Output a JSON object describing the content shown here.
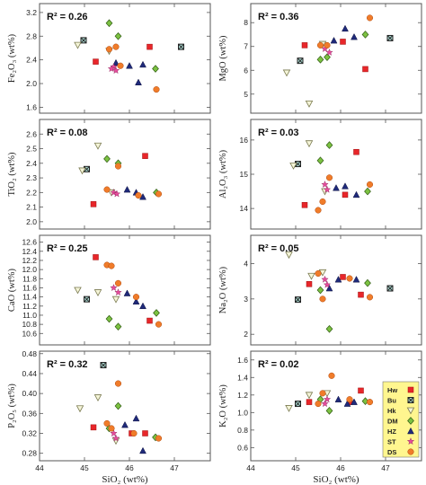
{
  "figure": {
    "x_label": "SiO₂ (wt%)",
    "x_ticks": [
      "44",
      "45",
      "46",
      "47"
    ],
    "x_lim": [
      44,
      47.8
    ]
  },
  "legend": [
    {
      "key": "Hw",
      "label": "Hw",
      "marker": "square",
      "color": "#e8262a"
    },
    {
      "key": "Bu",
      "label": "Bu",
      "marker": "square-x",
      "color": "#5a7f8a"
    },
    {
      "key": "Hk",
      "label": "Hk",
      "marker": "triangle-down",
      "color": "#d9d9a8"
    },
    {
      "key": "DM",
      "label": "DM",
      "marker": "diamond",
      "color": "#7cc242"
    },
    {
      "key": "HZ",
      "label": "HZ",
      "marker": "triangle-up",
      "color": "#1f2a7a"
    },
    {
      "key": "ST",
      "label": "ST",
      "marker": "star",
      "color": "#e64c9c"
    },
    {
      "key": "DS",
      "label": "DS",
      "marker": "circle",
      "color": "#f07c2a"
    }
  ],
  "colors": {
    "legend_bg": "#fff68f",
    "frame": "#555555"
  },
  "chart_data": [
    {
      "type": "scatter",
      "id": "fe2o3",
      "ylabel": "Fe₂O₃ (wt%)",
      "r2": "R² = 0.26",
      "ylim": [
        1.5,
        3.35
      ],
      "yticks": [
        1.6,
        2.0,
        2.4,
        2.8,
        3.2
      ],
      "ytick_labels": [
        "1.6",
        "2.0",
        "2.4",
        "2.8",
        "3.2"
      ],
      "series": [
        {
          "key": "Hw",
          "points": [
            [
              45.25,
              2.37
            ],
            [
              46.45,
              2.62
            ]
          ]
        },
        {
          "key": "Bu",
          "points": [
            [
              44.98,
              2.73
            ],
            [
              47.15,
              2.62
            ]
          ]
        },
        {
          "key": "Hk",
          "points": [
            [
              44.85,
              2.65
            ],
            [
              45.55,
              2.55
            ]
          ]
        },
        {
          "key": "DM",
          "points": [
            [
              45.55,
              3.02
            ],
            [
              45.75,
              2.8
            ],
            [
              46.58,
              2.25
            ]
          ]
        },
        {
          "key": "HZ",
          "points": [
            [
              45.7,
              2.35
            ],
            [
              46.0,
              2.3
            ],
            [
              46.2,
              2.02
            ],
            [
              46.3,
              2.32
            ]
          ]
        },
        {
          "key": "ST",
          "points": [
            [
              45.65,
              2.28
            ],
            [
              45.7,
              2.22
            ],
            [
              45.6,
              2.25
            ]
          ]
        },
        {
          "key": "DS",
          "points": [
            [
              45.55,
              2.58
            ],
            [
              45.7,
              2.62
            ],
            [
              45.8,
              2.3
            ],
            [
              46.6,
              1.9
            ]
          ]
        }
      ]
    },
    {
      "type": "scatter",
      "id": "mgo",
      "ylabel": "MgO (wt%)",
      "r2": "R² = 0.36",
      "ylim": [
        4.2,
        8.8
      ],
      "yticks": [
        5,
        6,
        7,
        8
      ],
      "ytick_labels": [
        "5",
        "6",
        "7",
        "8"
      ],
      "series": [
        {
          "key": "Hw",
          "points": [
            [
              45.2,
              7.05
            ],
            [
              46.05,
              7.2
            ],
            [
              46.55,
              6.05
            ]
          ]
        },
        {
          "key": "Bu",
          "points": [
            [
              45.1,
              6.4
            ],
            [
              47.1,
              7.35
            ]
          ]
        },
        {
          "key": "Hk",
          "points": [
            [
              44.8,
              5.9
            ],
            [
              45.3,
              4.6
            ],
            [
              45.6,
              7.1
            ]
          ]
        },
        {
          "key": "DM",
          "points": [
            [
              45.55,
              6.45
            ],
            [
              45.7,
              6.55
            ],
            [
              46.55,
              7.5
            ]
          ]
        },
        {
          "key": "HZ",
          "points": [
            [
              45.85,
              7.25
            ],
            [
              46.1,
              7.75
            ],
            [
              46.3,
              7.4
            ]
          ]
        },
        {
          "key": "ST",
          "points": [
            [
              45.65,
              6.9
            ],
            [
              45.75,
              6.75
            ]
          ]
        },
        {
          "key": "DS",
          "points": [
            [
              45.55,
              7.05
            ],
            [
              45.7,
              7.05
            ],
            [
              46.65,
              8.2
            ]
          ]
        }
      ]
    },
    {
      "type": "scatter",
      "id": "tio2",
      "ylabel": "TiO₂ (wt%)",
      "r2": "R² = 0.08",
      "ylim": [
        1.95,
        2.7
      ],
      "yticks": [
        2.0,
        2.1,
        2.2,
        2.3,
        2.4,
        2.5,
        2.6
      ],
      "ytick_labels": [
        "2.0",
        "2.1",
        "2.2",
        "2.3",
        "2.4",
        "2.5",
        "2.6"
      ],
      "series": [
        {
          "key": "Hw",
          "points": [
            [
              45.2,
              2.12
            ],
            [
              46.35,
              2.45
            ]
          ]
        },
        {
          "key": "Bu",
          "points": [
            [
              45.05,
              2.36
            ]
          ]
        },
        {
          "key": "Hk",
          "points": [
            [
              44.95,
              2.35
            ],
            [
              45.3,
              2.52
            ],
            [
              45.6,
              2.2
            ]
          ]
        },
        {
          "key": "DM",
          "points": [
            [
              45.5,
              2.43
            ],
            [
              45.75,
              2.4
            ],
            [
              46.6,
              2.2
            ]
          ]
        },
        {
          "key": "HZ",
          "points": [
            [
              45.95,
              2.22
            ],
            [
              46.15,
              2.2
            ],
            [
              46.3,
              2.17
            ]
          ]
        },
        {
          "key": "ST",
          "points": [
            [
              45.65,
              2.2
            ],
            [
              45.72,
              2.19
            ]
          ]
        },
        {
          "key": "DS",
          "points": [
            [
              45.5,
              2.22
            ],
            [
              45.75,
              2.38
            ],
            [
              46.2,
              2.18
            ],
            [
              46.65,
              2.19
            ]
          ]
        }
      ]
    },
    {
      "type": "scatter",
      "id": "al2o3",
      "ylabel": "Al₂O₃ (wt%)",
      "r2": "R² = 0.03",
      "ylim": [
        13.4,
        16.6
      ],
      "yticks": [
        14,
        15,
        16
      ],
      "ytick_labels": [
        "14",
        "15",
        "16"
      ],
      "series": [
        {
          "key": "Hw",
          "points": [
            [
              45.2,
              14.1
            ],
            [
              46.1,
              14.4
            ],
            [
              46.35,
              15.65
            ]
          ]
        },
        {
          "key": "Bu",
          "points": [
            [
              45.05,
              15.3
            ]
          ]
        },
        {
          "key": "Hk",
          "points": [
            [
              44.95,
              15.25
            ],
            [
              45.3,
              15.9
            ],
            [
              45.65,
              14.5
            ]
          ]
        },
        {
          "key": "DM",
          "points": [
            [
              45.55,
              15.4
            ],
            [
              45.75,
              15.85
            ],
            [
              46.6,
              14.5
            ]
          ]
        },
        {
          "key": "HZ",
          "points": [
            [
              45.9,
              14.6
            ],
            [
              46.1,
              14.65
            ],
            [
              46.35,
              14.4
            ]
          ]
        },
        {
          "key": "ST",
          "points": [
            [
              45.65,
              14.7
            ],
            [
              45.7,
              14.55
            ]
          ]
        },
        {
          "key": "DS",
          "points": [
            [
              45.5,
              13.95
            ],
            [
              45.6,
              14.2
            ],
            [
              45.75,
              14.9
            ],
            [
              46.65,
              14.7
            ]
          ]
        }
      ]
    },
    {
      "type": "scatter",
      "id": "cao",
      "ylabel": "CaO (wt%)",
      "r2": "R² = 0.25",
      "ylim": [
        10.35,
        12.75
      ],
      "yticks": [
        10.6,
        10.8,
        11.0,
        11.2,
        11.4,
        11.6,
        11.8,
        12.0,
        12.2,
        12.4,
        12.6
      ],
      "ytick_labels": [
        "10.6",
        "10.8",
        "11.0",
        "11.2",
        "11.4",
        "11.6",
        "11.8",
        "12.0",
        "12.2",
        "12.4",
        "12.6"
      ],
      "series": [
        {
          "key": "Hw",
          "points": [
            [
              45.25,
              12.27
            ],
            [
              46.45,
              10.88
            ]
          ]
        },
        {
          "key": "Bu",
          "points": [
            [
              45.05,
              11.35
            ]
          ]
        },
        {
          "key": "Hk",
          "points": [
            [
              44.85,
              11.55
            ],
            [
              45.3,
              11.5
            ],
            [
              45.7,
              11.35
            ]
          ]
        },
        {
          "key": "DM",
          "points": [
            [
              45.55,
              10.92
            ],
            [
              45.75,
              10.75
            ],
            [
              46.6,
              11.05
            ]
          ]
        },
        {
          "key": "HZ",
          "points": [
            [
              45.95,
              11.48
            ],
            [
              46.15,
              11.3
            ],
            [
              46.3,
              11.2
            ]
          ]
        },
        {
          "key": "ST",
          "points": [
            [
              45.65,
              11.6
            ],
            [
              45.75,
              11.5
            ]
          ]
        },
        {
          "key": "DS",
          "points": [
            [
              45.5,
              12.1
            ],
            [
              45.6,
              12.08
            ],
            [
              45.75,
              11.7
            ],
            [
              46.15,
              11.4
            ],
            [
              46.65,
              10.8
            ]
          ]
        }
      ]
    },
    {
      "type": "scatter",
      "id": "na2o",
      "ylabel": "Na₂O (wt%)",
      "r2": "R² = 0.05",
      "ylim": [
        1.7,
        4.8
      ],
      "yticks": [
        2,
        3,
        4
      ],
      "ytick_labels": [
        "2",
        "3",
        "4"
      ],
      "series": [
        {
          "key": "Hw",
          "points": [
            [
              45.3,
              3.42
            ],
            [
              46.05,
              3.62
            ],
            [
              46.45,
              3.12
            ]
          ]
        },
        {
          "key": "Bu",
          "points": [
            [
              45.05,
              2.98
            ],
            [
              47.1,
              3.3
            ]
          ]
        },
        {
          "key": "Hk",
          "points": [
            [
              44.85,
              4.25
            ],
            [
              45.35,
              3.65
            ],
            [
              45.6,
              3.75
            ]
          ]
        },
        {
          "key": "DM",
          "points": [
            [
              45.55,
              3.25
            ],
            [
              45.75,
              2.15
            ],
            [
              46.6,
              3.45
            ]
          ]
        },
        {
          "key": "HZ",
          "points": [
            [
              45.75,
              3.3
            ],
            [
              45.95,
              3.55
            ],
            [
              46.35,
              3.55
            ]
          ]
        },
        {
          "key": "ST",
          "points": [
            [
              45.65,
              3.55
            ],
            [
              45.7,
              3.4
            ]
          ]
        },
        {
          "key": "DS",
          "points": [
            [
              45.5,
              3.72
            ],
            [
              45.6,
              3.0
            ],
            [
              46.2,
              3.58
            ],
            [
              46.65,
              3.05
            ]
          ]
        }
      ]
    },
    {
      "type": "scatter",
      "id": "p2o5",
      "ylabel": "P₂O₅ (wt%)",
      "r2": "R² = 0.32",
      "ylim": [
        0.265,
        0.485
      ],
      "yticks": [
        0.28,
        0.32,
        0.36,
        0.4,
        0.44,
        0.48
      ],
      "ytick_labels": [
        "0.28",
        "0.32",
        "0.36",
        "0.40",
        "0.44",
        "0.48"
      ],
      "series": [
        {
          "key": "Hw",
          "points": [
            [
              45.2,
              0.332
            ],
            [
              46.05,
              0.32
            ],
            [
              46.35,
              0.32
            ]
          ]
        },
        {
          "key": "Bu",
          "points": [
            [
              45.42,
              0.457
            ]
          ]
        },
        {
          "key": "Hk",
          "points": [
            [
              44.9,
              0.37
            ],
            [
              45.3,
              0.392
            ],
            [
              45.7,
              0.305
            ]
          ]
        },
        {
          "key": "DM",
          "points": [
            [
              45.55,
              0.33
            ],
            [
              45.75,
              0.375
            ],
            [
              46.58,
              0.312
            ]
          ]
        },
        {
          "key": "HZ",
          "points": [
            [
              45.9,
              0.337
            ],
            [
              46.15,
              0.35
            ],
            [
              46.3,
              0.285
            ]
          ]
        },
        {
          "key": "ST",
          "points": [
            [
              45.65,
              0.32
            ],
            [
              45.7,
              0.31
            ]
          ]
        },
        {
          "key": "DS",
          "points": [
            [
              45.5,
              0.34
            ],
            [
              45.6,
              0.33
            ],
            [
              45.75,
              0.42
            ],
            [
              46.1,
              0.32
            ],
            [
              46.65,
              0.31
            ]
          ]
        }
      ]
    },
    {
      "type": "scatter",
      "id": "k2o",
      "ylabel": "K₂O (wt%)",
      "r2": "R² = 0.02",
      "ylim": [
        0.45,
        1.7
      ],
      "yticks": [
        0.6,
        0.8,
        1.0,
        1.2,
        1.4,
        1.6
      ],
      "ytick_labels": [
        "0.6",
        "0.8",
        "1.0",
        "1.2",
        "1.4",
        "1.6"
      ],
      "series": [
        {
          "key": "Hw",
          "points": [
            [
              45.3,
              1.12
            ],
            [
              46.2,
              1.12
            ],
            [
              46.45,
              1.25
            ]
          ]
        },
        {
          "key": "Bu",
          "points": [
            [
              45.05,
              1.1
            ]
          ]
        },
        {
          "key": "Hk",
          "points": [
            [
              44.85,
              1.05
            ],
            [
              45.3,
              1.2
            ],
            [
              45.7,
              1.22
            ]
          ]
        },
        {
          "key": "DM",
          "points": [
            [
              45.55,
              1.15
            ],
            [
              45.75,
              1.02
            ],
            [
              46.55,
              1.13
            ]
          ]
        },
        {
          "key": "HZ",
          "points": [
            [
              45.95,
              1.15
            ],
            [
              46.15,
              1.1
            ],
            [
              46.3,
              1.12
            ]
          ]
        },
        {
          "key": "ST",
          "points": [
            [
              45.65,
              1.1
            ],
            [
              45.7,
              1.15
            ]
          ]
        },
        {
          "key": "DS",
          "points": [
            [
              45.5,
              1.1
            ],
            [
              45.6,
              1.22
            ],
            [
              45.8,
              1.42
            ],
            [
              46.2,
              1.15
            ],
            [
              46.65,
              1.12
            ]
          ]
        }
      ]
    }
  ]
}
